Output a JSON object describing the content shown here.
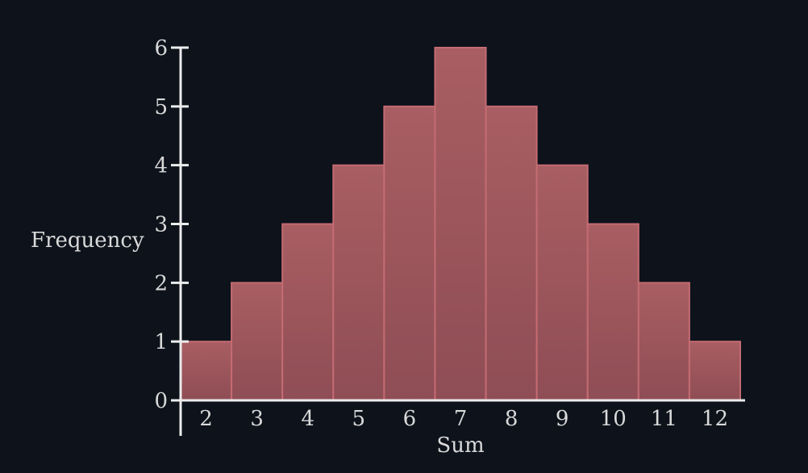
{
  "chart_data": {
    "type": "bar",
    "categories": [
      "2",
      "3",
      "4",
      "5",
      "6",
      "7",
      "8",
      "9",
      "10",
      "11",
      "12"
    ],
    "values": [
      1,
      2,
      3,
      4,
      5,
      6,
      5,
      4,
      3,
      2,
      1
    ],
    "xlabel": "Sum",
    "ylabel": "Frequency",
    "ylim": [
      0,
      6
    ],
    "yticks": [
      "0",
      "1",
      "2",
      "3",
      "4",
      "5",
      "6"
    ],
    "grid": false,
    "colors": {
      "background": "#0d121b",
      "bar_fill_top": "#a85e62",
      "bar_fill_bottom": "#8f4d55",
      "bar_stroke": "#c46b72",
      "axis": "#ececec",
      "text": "#d9d9d9"
    }
  }
}
